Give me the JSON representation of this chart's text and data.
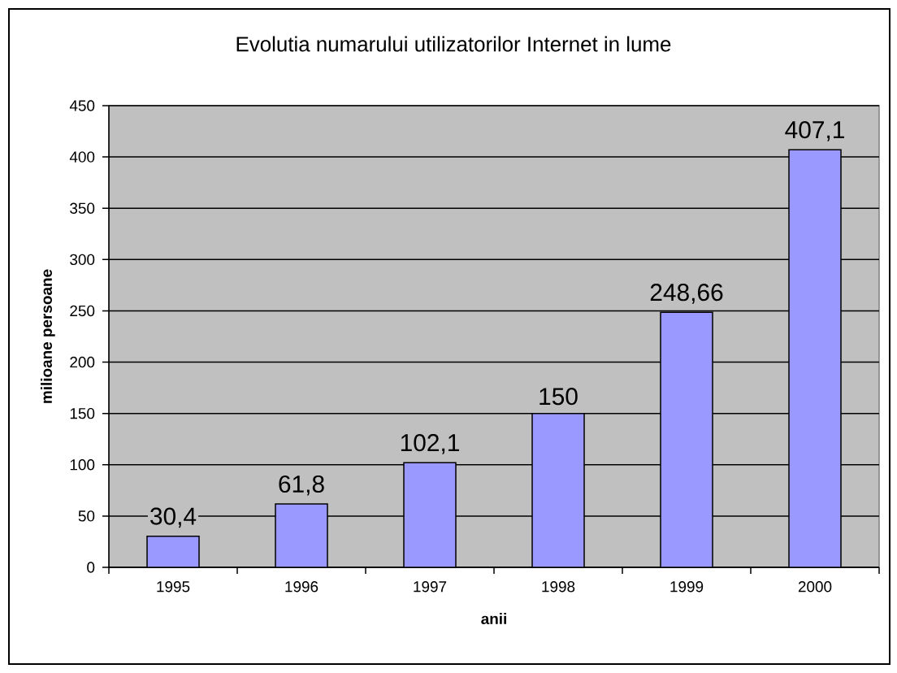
{
  "chart_data": {
    "type": "bar",
    "title": "Evolutia numarului utilizatorilor Internet in lume",
    "xlabel": "anii",
    "ylabel": "milioane persoane",
    "categories": [
      "1995",
      "1996",
      "1997",
      "1998",
      "1999",
      "2000"
    ],
    "values": [
      30.4,
      61.8,
      102.1,
      150,
      248.66,
      407.1
    ],
    "value_labels": [
      "30,4",
      "61,8",
      "102,1",
      "150",
      "248,66",
      "407,1"
    ],
    "color": "#9999ff",
    "ylim": [
      0,
      450
    ],
    "yticks": [
      0,
      50,
      100,
      150,
      200,
      250,
      300,
      350,
      400,
      450
    ],
    "grid": "y"
  }
}
